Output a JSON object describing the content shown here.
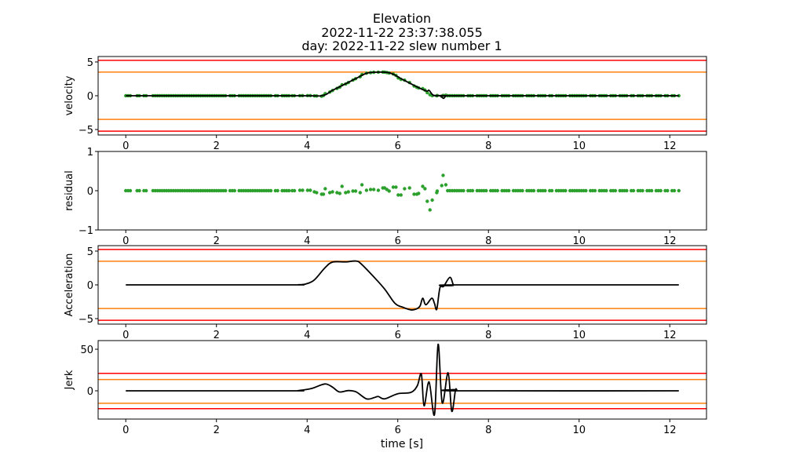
{
  "chart_data": {
    "type": "line",
    "title_lines": [
      "Elevation",
      "2022-11-22 23:37:38.055",
      "day: 2022-11-22 slew number 1"
    ],
    "xlabel": "time [s]",
    "xlim": [
      -0.61,
      12.81
    ],
    "xticks": [
      0,
      2,
      4,
      6,
      8,
      10,
      12
    ],
    "colors": {
      "fit": "#000000",
      "measured": "#2ca02c",
      "limit_outer": "#ff0000",
      "limit_inner": "#ff7f0e",
      "axes": "#000000"
    },
    "baseline_sample_times": [
      0,
      0.05,
      0.1,
      0.25,
      0.3,
      0.4,
      0.45,
      0.6,
      0.65,
      0.7,
      0.75,
      0.8,
      0.85,
      0.9,
      0.95,
      1.0,
      1.05,
      1.1,
      1.15,
      1.2,
      1.25,
      1.3,
      1.35,
      1.4,
      1.45,
      1.5,
      1.55,
      1.6,
      1.65,
      1.7,
      1.75,
      1.8,
      1.85,
      1.9,
      1.95,
      2.0,
      2.05,
      2.1,
      2.15,
      2.2,
      2.3,
      2.35,
      2.4,
      2.5,
      2.55,
      2.6,
      2.65,
      2.7,
      2.75,
      2.8,
      2.85,
      2.9,
      2.95,
      3.0,
      3.05,
      3.1,
      3.15,
      3.2,
      3.3,
      3.35,
      3.45,
      3.5,
      3.55,
      3.6,
      7.15,
      7.2,
      7.25,
      7.3,
      7.35,
      7.4,
      7.45,
      7.55,
      7.6,
      7.65,
      7.75,
      7.8,
      7.85,
      7.9,
      7.95,
      8.05,
      8.1,
      8.15,
      8.2,
      8.3,
      8.35,
      8.4,
      8.45,
      8.55,
      8.6,
      8.65,
      8.7,
      8.75,
      8.85,
      8.9,
      8.95,
      9.0,
      9.1,
      9.15,
      9.2,
      9.25,
      9.35,
      9.4,
      9.5,
      9.55,
      9.6,
      9.65,
      9.7,
      9.8,
      9.85,
      9.9,
      9.95,
      10.0,
      10.05,
      10.1,
      10.15,
      10.25,
      10.3,
      10.35,
      10.45,
      10.5,
      10.55,
      10.6,
      10.7,
      10.75,
      10.8,
      10.9,
      10.95,
      11.0,
      11.05,
      11.15,
      11.2,
      11.3,
      11.35,
      11.4,
      11.5,
      11.55,
      11.6,
      11.7,
      11.75,
      11.8,
      11.9,
      11.95,
      12.05,
      12.1,
      12.2
    ],
    "transition_samples": [
      [
        3.67,
        0
      ],
      [
        3.72,
        0
      ],
      [
        3.84,
        0.01
      ],
      [
        3.9,
        0.01
      ],
      [
        4.01,
        0.01
      ],
      [
        4.07,
        0.01
      ],
      [
        4.16,
        -0.03
      ],
      [
        4.21,
        -0.05
      ],
      [
        4.32,
        -0.09
      ],
      [
        4.36,
        -0.09
      ],
      [
        4.4,
        0.05
      ],
      [
        4.5,
        -0.05
      ],
      [
        4.56,
        -0.03
      ],
      [
        4.66,
        -0.05
      ],
      [
        4.72,
        -0.07
      ],
      [
        4.77,
        0.11
      ],
      [
        4.85,
        -0.05
      ],
      [
        4.91,
        -0.03
      ],
      [
        5.01,
        -0.01
      ],
      [
        5.07,
        -0.01
      ],
      [
        5.17,
        -0.05
      ],
      [
        5.21,
        0.15
      ],
      [
        5.31,
        0.01
      ],
      [
        5.4,
        0.03
      ],
      [
        5.47,
        0.03
      ],
      [
        5.57,
        0.01
      ],
      [
        5.67,
        0.07
      ],
      [
        5.71,
        0.07
      ],
      [
        5.76,
        0.03
      ],
      [
        5.81,
        -0.01
      ],
      [
        5.9,
        0.09
      ],
      [
        5.96,
        0.09
      ],
      [
        6.01,
        -0.11
      ],
      [
        6.07,
        -0.11
      ],
      [
        6.15,
        0.05
      ],
      [
        6.26,
        0.07
      ],
      [
        6.36,
        -0.09
      ],
      [
        6.42,
        -0.09
      ],
      [
        6.46,
        -0.07
      ],
      [
        6.55,
        0.11
      ],
      [
        6.6,
        0.05
      ],
      [
        6.65,
        -0.27
      ],
      [
        6.71,
        -0.49
      ],
      [
        6.76,
        -0.24
      ],
      [
        6.86,
        -0.05
      ],
      [
        6.87,
        -0.01
      ],
      [
        6.97,
        0.13
      ],
      [
        7.0,
        0.39
      ],
      [
        7.06,
        0.15
      ],
      [
        7.1,
        0
      ]
    ],
    "panels": [
      {
        "name": "velocity",
        "ylabel": "velocity",
        "ylim": [
          -5.81,
          5.81
        ],
        "yticks": [
          -5,
          0,
          5
        ],
        "limits_outer": [
          5.25,
          -5.25
        ],
        "limits_inner": [
          3.5,
          -3.5
        ],
        "fit": [
          [
            0,
            0
          ],
          [
            3.8,
            0
          ],
          [
            4.33,
            0.02
          ],
          [
            4.56,
            0.8
          ],
          [
            4.85,
            1.78
          ],
          [
            5.08,
            2.56
          ],
          [
            5.31,
            3.33
          ],
          [
            5.54,
            3.49
          ],
          [
            5.83,
            3.37
          ],
          [
            6.12,
            2.36
          ],
          [
            6.4,
            1.4
          ],
          [
            6.63,
            0.7
          ],
          [
            6.69,
            0.8
          ],
          [
            6.78,
            0.1
          ],
          [
            6.93,
            0
          ],
          [
            7.01,
            -0.39
          ],
          [
            7.07,
            0
          ],
          [
            7.2,
            0
          ],
          [
            12.2,
            0
          ]
        ]
      },
      {
        "name": "residual",
        "ylabel": "residual",
        "ylim": [
          -1,
          1
        ],
        "yticks": [
          -1,
          0,
          1
        ]
      },
      {
        "name": "acceleration",
        "ylabel": "Acceleration",
        "ylim": [
          -5.81,
          5.81
        ],
        "yticks": [
          -5,
          0,
          5
        ],
        "limits_outer": [
          5.25,
          -5.25
        ],
        "limits_inner": [
          3.5,
          -3.5
        ],
        "fit": [
          [
            0,
            0
          ],
          [
            3.6,
            0
          ],
          [
            3.81,
            0.02
          ],
          [
            3.98,
            0.15
          ],
          [
            4.16,
            0.74
          ],
          [
            4.39,
            2.5
          ],
          [
            4.56,
            3.37
          ],
          [
            4.85,
            3.4
          ],
          [
            5.08,
            3.53
          ],
          [
            5.2,
            3.06
          ],
          [
            5.48,
            1.12
          ],
          [
            5.71,
            -0.62
          ],
          [
            5.94,
            -2.75
          ],
          [
            6.12,
            -3.33
          ],
          [
            6.29,
            -3.7
          ],
          [
            6.4,
            -3.6
          ],
          [
            6.49,
            -3.14
          ],
          [
            6.55,
            -1.98
          ],
          [
            6.62,
            -2.95
          ],
          [
            6.75,
            -1.98
          ],
          [
            6.81,
            -2.76
          ],
          [
            6.86,
            -3.6
          ],
          [
            6.93,
            -0.43
          ],
          [
            7.01,
            -0.23
          ],
          [
            7.15,
            1.12
          ],
          [
            7.23,
            -0.04
          ],
          [
            7.3,
            0
          ],
          [
            12.2,
            0
          ]
        ]
      },
      {
        "name": "jerk",
        "ylabel": "Jerk",
        "ylim": [
          -34,
          60.4
        ],
        "yticks": [
          0,
          50
        ],
        "limits_outer": [
          21,
          -21.5
        ],
        "limits_inner": [
          13.5,
          -15
        ],
        "fit": [
          [
            0,
            0
          ],
          [
            3.6,
            0
          ],
          [
            3.81,
            0.3
          ],
          [
            4.1,
            2.8
          ],
          [
            4.39,
            8.2
          ],
          [
            4.56,
            4.4
          ],
          [
            4.71,
            -1.3
          ],
          [
            4.91,
            0.3
          ],
          [
            5.08,
            -1.3
          ],
          [
            5.31,
            -9.7
          ],
          [
            5.48,
            -8.2
          ],
          [
            5.57,
            -6.9
          ],
          [
            5.71,
            -9.7
          ],
          [
            6.0,
            -3.5
          ],
          [
            6.29,
            -1.9
          ],
          [
            6.43,
            6
          ],
          [
            6.52,
            20
          ],
          [
            6.58,
            -18
          ],
          [
            6.69,
            10.7
          ],
          [
            6.81,
            -28.6
          ],
          [
            6.89,
            56
          ],
          [
            6.98,
            -14.5
          ],
          [
            7.11,
            21.7
          ],
          [
            7.19,
            -24.5
          ],
          [
            7.27,
            0
          ],
          [
            7.3,
            1.5
          ],
          [
            7.35,
            0
          ],
          [
            12.2,
            0
          ]
        ]
      }
    ]
  }
}
